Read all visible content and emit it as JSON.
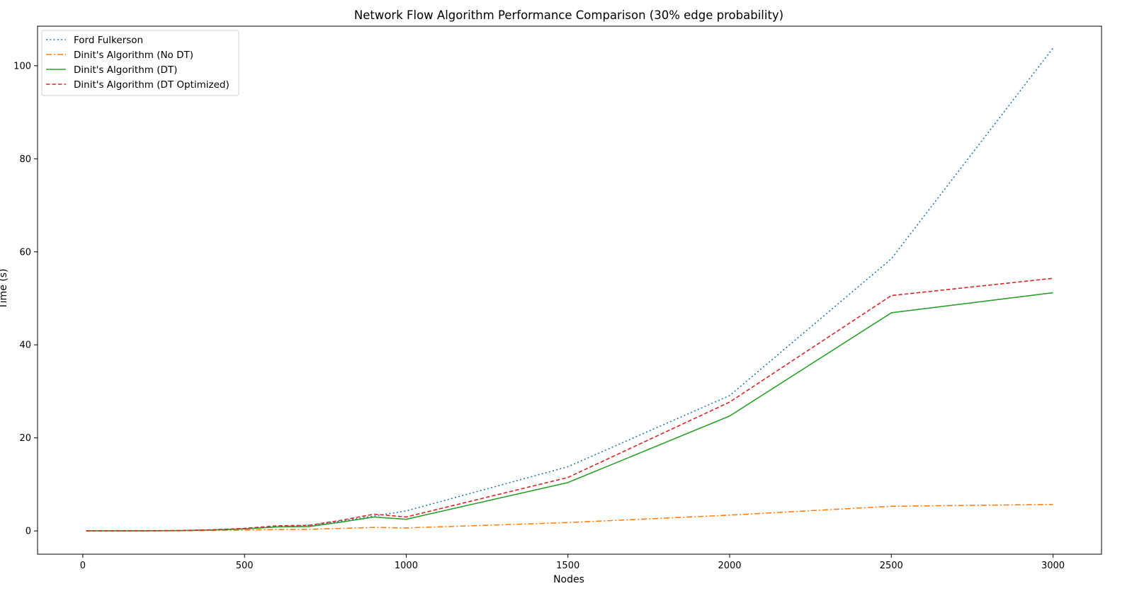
{
  "chart_data": {
    "type": "line",
    "title": "Network Flow Algorithm Performance Comparison (30% edge probability)",
    "xlabel": "Nodes",
    "ylabel": "Time (s)",
    "xlim": [
      -140,
      3150
    ],
    "ylim": [
      -5,
      108.5
    ],
    "xticks": [
      0,
      500,
      1000,
      1500,
      2000,
      2500,
      3000
    ],
    "yticks": [
      0,
      20,
      40,
      60,
      80,
      100
    ],
    "grid": false,
    "legend_position": "top-left",
    "x": [
      10,
      100,
      200,
      300,
      400,
      500,
      600,
      700,
      800,
      900,
      1000,
      1500,
      2000,
      2500,
      3000
    ],
    "series": [
      {
        "name": "Ford Fulkerson",
        "color": "#1f77b4",
        "style": "dotted",
        "values": [
          0.0,
          0.01,
          0.03,
          0.08,
          0.2,
          0.45,
          0.9,
          1.2,
          2.1,
          3.2,
          4.3,
          13.8,
          29.1,
          58.5,
          103.8
        ]
      },
      {
        "name": "Dinit's Algorithm (No DT)",
        "color": "#ff7f0e",
        "style": "dashdot",
        "values": [
          0.0,
          0.01,
          0.02,
          0.04,
          0.1,
          0.2,
          0.3,
          0.35,
          0.55,
          0.75,
          0.65,
          1.8,
          3.4,
          5.3,
          5.7
        ]
      },
      {
        "name": "Dinit's Algorithm (DT)",
        "color": "#2ca02c",
        "style": "solid",
        "values": [
          0.0,
          0.01,
          0.03,
          0.07,
          0.2,
          0.45,
          0.85,
          0.95,
          1.9,
          3.0,
          2.5,
          10.4,
          24.7,
          46.9,
          51.2
        ]
      },
      {
        "name": "Dinit's Algorithm (DT Optimized)",
        "color": "#d62728",
        "style": "dashed",
        "values": [
          0.0,
          0.01,
          0.04,
          0.09,
          0.25,
          0.55,
          1.1,
          1.2,
          2.3,
          3.6,
          3.0,
          11.5,
          27.7,
          50.6,
          54.3
        ]
      }
    ]
  }
}
